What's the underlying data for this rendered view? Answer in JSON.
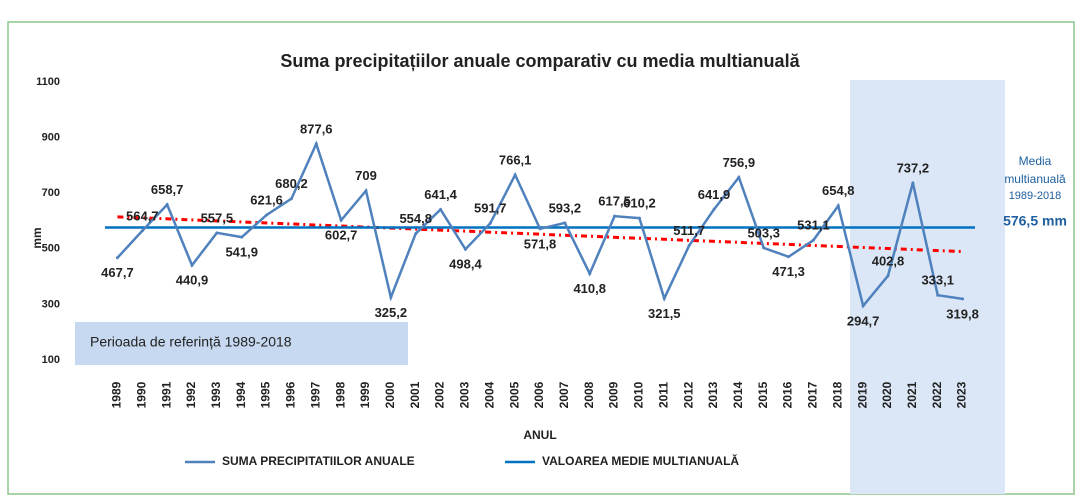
{
  "chart_data": {
    "type": "line",
    "title": "Suma precipitațiilor  anuale comparativ cu media multianuală",
    "x_label": "ANUL",
    "y_label": "mm",
    "categories": [
      "1989",
      "1990",
      "1991",
      "1992",
      "1993",
      "1994",
      "1995",
      "1996",
      "1997",
      "1998",
      "1999",
      "2000",
      "2001",
      "2002",
      "2003",
      "2004",
      "2005",
      "2006",
      "2007",
      "2008",
      "2009",
      "2010",
      "2011",
      "2012",
      "2013",
      "2014",
      "2015",
      "2016",
      "2017",
      "2018",
      "2019",
      "2020",
      "2021",
      "2022",
      "2023"
    ],
    "series": [
      {
        "name": "SUMA PRECIPITATIILOR ANUALE",
        "color": "#4f81bd",
        "values": [
          467.7,
          564.7,
          658.7,
          440.9,
          557.5,
          541.9,
          621.6,
          680.2,
          877.6,
          602.7,
          709,
          325.2,
          554.8,
          641.4,
          498.4,
          591.7,
          766.1,
          571.8,
          593.2,
          410.8,
          617.5,
          610.2,
          321.5,
          511.7,
          641.9,
          756.9,
          503.3,
          471.3,
          531.1,
          654.8,
          294.7,
          402.8,
          737.2,
          333.1,
          319.8
        ],
        "value_labels": [
          "467,7",
          "564,7",
          "658,7",
          "440,9",
          "557,5",
          "541,9",
          "621,6",
          "680,2",
          "877,6",
          "602,7",
          "709",
          "325,2",
          "554,8",
          "641,4",
          "498,4",
          "591,7",
          "766,1",
          "571,8",
          "593,2",
          "410,8",
          "617,5",
          "610,2",
          "321,5",
          "511,7",
          "641,9",
          "756,9",
          "503,3",
          "471,3",
          "531,1",
          "654,8",
          "294,7",
          "402,8",
          "737,2",
          "333,1",
          "319,8"
        ]
      }
    ],
    "mean": {
      "name": "VALOAREA MEDIE MULTIANUALĂ",
      "color": "#0070c0",
      "value": 576.5,
      "label": "576,5 mm"
    },
    "mean_annotation": [
      "Media",
      "multianuală",
      "1989-2018"
    ],
    "trend": {
      "color": "#ff0000",
      "values": [
        615,
        490
      ]
    },
    "reference_annotation": "Perioada de referință 1989-2018",
    "ylim": [
      100,
      1100
    ],
    "yticks": [
      100,
      300,
      500,
      700,
      900,
      1100
    ],
    "grid": false
  }
}
